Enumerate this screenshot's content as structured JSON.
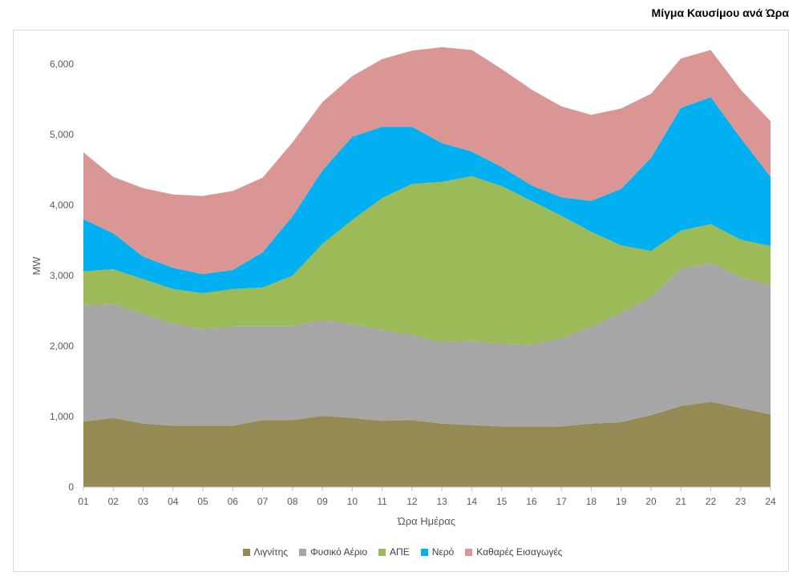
{
  "chart_data": {
    "type": "area",
    "stacked": true,
    "title": "Μίγμα Καυσίμου ανά Ώρα",
    "xlabel": "Ώρα Ημέρας",
    "ylabel": "MW",
    "ylim": [
      0,
      6000
    ],
    "yticks": [
      "0",
      "1,000",
      "2,000",
      "3,000",
      "4,000",
      "5,000",
      "6,000"
    ],
    "categories": [
      "01",
      "02",
      "03",
      "04",
      "05",
      "06",
      "07",
      "08",
      "09",
      "10",
      "11",
      "12",
      "13",
      "14",
      "15",
      "16",
      "17",
      "18",
      "19",
      "20",
      "21",
      "22",
      "23",
      "24"
    ],
    "legend_position": "bottom",
    "grid": false,
    "series": [
      {
        "name": "Λιγνίτης",
        "color": "#948a54",
        "values": [
          930,
          980,
          900,
          870,
          870,
          870,
          950,
          950,
          1010,
          980,
          940,
          950,
          900,
          880,
          860,
          860,
          860,
          900,
          920,
          1020,
          1150,
          1210,
          1120,
          1030
        ]
      },
      {
        "name": "Φυσικό Αέριο",
        "color": "#a6a6a6",
        "values": [
          1650,
          1620,
          1560,
          1450,
          1370,
          1410,
          1330,
          1330,
          1360,
          1330,
          1290,
          1210,
          1150,
          1200,
          1170,
          1160,
          1250,
          1370,
          1550,
          1680,
          1940,
          1970,
          1860,
          1840
        ]
      },
      {
        "name": "ΑΠΕ",
        "color": "#9bbb59",
        "values": [
          480,
          490,
          490,
          490,
          510,
          530,
          550,
          720,
          1080,
          1480,
          1870,
          2140,
          2280,
          2330,
          2240,
          2040,
          1740,
          1350,
          960,
          650,
          550,
          550,
          530,
          550
        ]
      },
      {
        "name": "Νερό",
        "color": "#00b0f0",
        "values": [
          740,
          510,
          320,
          300,
          270,
          270,
          500,
          840,
          1040,
          1180,
          1010,
          810,
          550,
          350,
          270,
          220,
          260,
          440,
          800,
          1320,
          1740,
          1800,
          1440,
          980
        ]
      },
      {
        "name": "Καθαρές Εισαγωγές",
        "color": "#da9694",
        "values": [
          950,
          800,
          970,
          1040,
          1110,
          1120,
          1060,
          1050,
          970,
          860,
          960,
          1080,
          1360,
          1440,
          1390,
          1360,
          1290,
          1220,
          1140,
          910,
          700,
          670,
          690,
          790
        ]
      }
    ]
  }
}
